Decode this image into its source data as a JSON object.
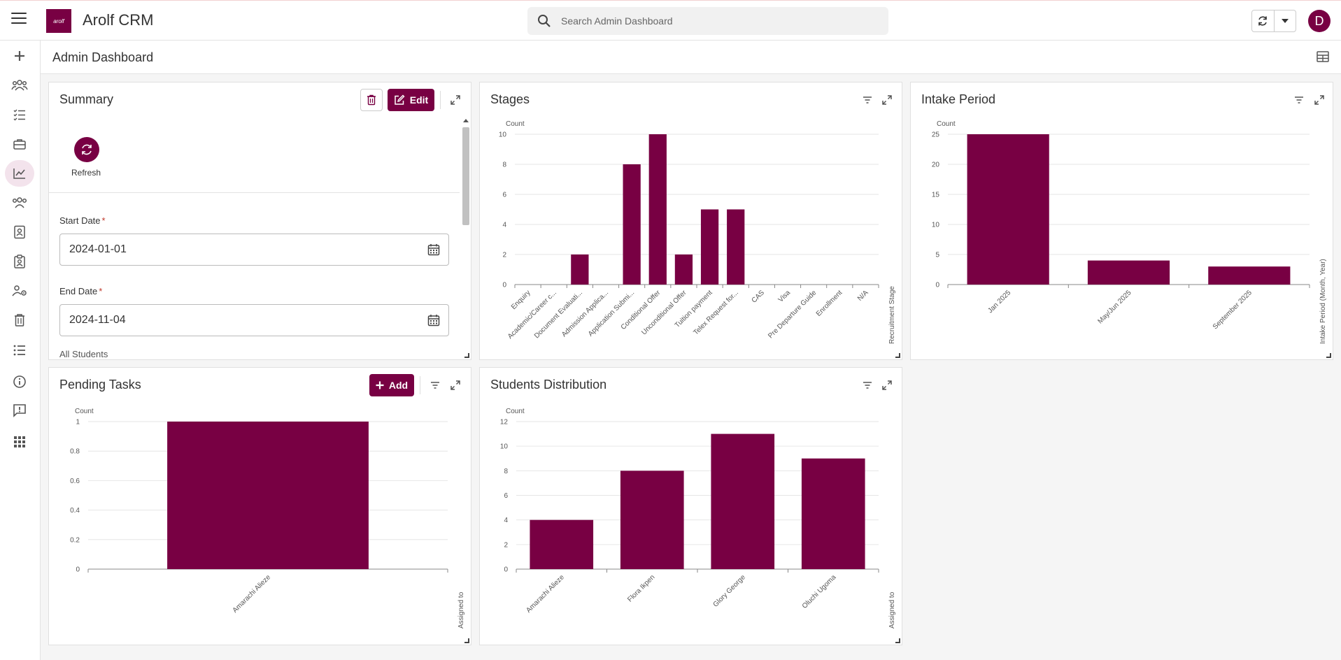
{
  "app": {
    "title": "Arolf CRM",
    "logo_text": "arolf",
    "avatar_initial": "D"
  },
  "search": {
    "placeholder": "Search Admin Dashboard"
  },
  "page": {
    "title": "Admin Dashboard"
  },
  "colors": {
    "accent": "#780043",
    "grid": "#e6e6e6",
    "axis_text": "#555555"
  },
  "sidebar": {
    "items": [
      {
        "icon": "plus-icon"
      },
      {
        "icon": "users-icon"
      },
      {
        "icon": "task-list-icon"
      },
      {
        "icon": "briefcase-icon"
      },
      {
        "icon": "chart-line-icon",
        "active": true
      },
      {
        "icon": "group-icon"
      },
      {
        "icon": "contact-card-icon"
      },
      {
        "icon": "clipboard-user-icon"
      },
      {
        "icon": "user-settings-icon"
      },
      {
        "icon": "trash-icon"
      },
      {
        "icon": "list-icon"
      },
      {
        "icon": "info-icon"
      },
      {
        "icon": "feedback-icon"
      },
      {
        "icon": "apps-grid-icon"
      }
    ]
  },
  "summary": {
    "title": "Summary",
    "edit_label": "Edit",
    "refresh_label": "Refresh",
    "start_date_label": "Start Date",
    "start_date_value": "2024-01-01",
    "end_date_label": "End Date",
    "end_date_value": "2024-11-04",
    "required_mark": "*",
    "all_students_label": "All Students"
  },
  "stages": {
    "title": "Stages"
  },
  "intake": {
    "title": "Intake Period"
  },
  "pending": {
    "title": "Pending Tasks",
    "add_label": "Add"
  },
  "distribution": {
    "title": "Students Distribution"
  },
  "chart_data": [
    {
      "id": "stages",
      "type": "bar",
      "ylabel": "Count",
      "xlabel": "Recruitment Stage",
      "ylim": [
        0,
        10
      ],
      "yticks": [
        0,
        2,
        4,
        6,
        8,
        10
      ],
      "categories": [
        "Enquiry",
        "Academic/Career c...",
        "Document Evaluati...",
        "Admission Applica...",
        "Application Submi...",
        "Conditional Offer",
        "Unconditional Offer",
        "Tuition payment",
        "Telex Request for...",
        "CAS",
        "Visa",
        "Pre Departure Guide",
        "Enrollment",
        "N/A"
      ],
      "values": [
        0,
        0,
        2,
        0,
        8,
        10,
        2,
        5,
        5,
        0,
        0,
        0,
        0,
        0
      ],
      "grid": true,
      "legend": "none"
    },
    {
      "id": "intake",
      "type": "bar",
      "ylabel": "Count",
      "xlabel": "Intake Period (Month, Year)",
      "ylim": [
        0,
        25
      ],
      "yticks": [
        0,
        5,
        10,
        15,
        20,
        25
      ],
      "categories": [
        "Jan 2025",
        "May/Jun 2025",
        "September 2025"
      ],
      "values": [
        25,
        4,
        3
      ],
      "grid": true,
      "legend": "none"
    },
    {
      "id": "pending",
      "type": "bar",
      "ylabel": "Count",
      "xlabel": "Assigned to",
      "ylim": [
        0,
        1
      ],
      "yticks": [
        0,
        0.2,
        0.4,
        0.6,
        0.8,
        1
      ],
      "categories": [
        "Amarachi Alieze"
      ],
      "values": [
        1
      ],
      "grid": true,
      "legend": "none"
    },
    {
      "id": "distribution",
      "type": "bar",
      "ylabel": "Count",
      "xlabel": "Assigned to",
      "ylim": [
        0,
        12
      ],
      "yticks": [
        0,
        2,
        4,
        6,
        8,
        10,
        12
      ],
      "categories": [
        "Amarachi Alieze",
        "Flora Ikpen",
        "Glory George",
        "Oluchi Ugoma"
      ],
      "values": [
        4,
        8,
        11,
        9
      ],
      "grid": true,
      "legend": "none"
    }
  ]
}
